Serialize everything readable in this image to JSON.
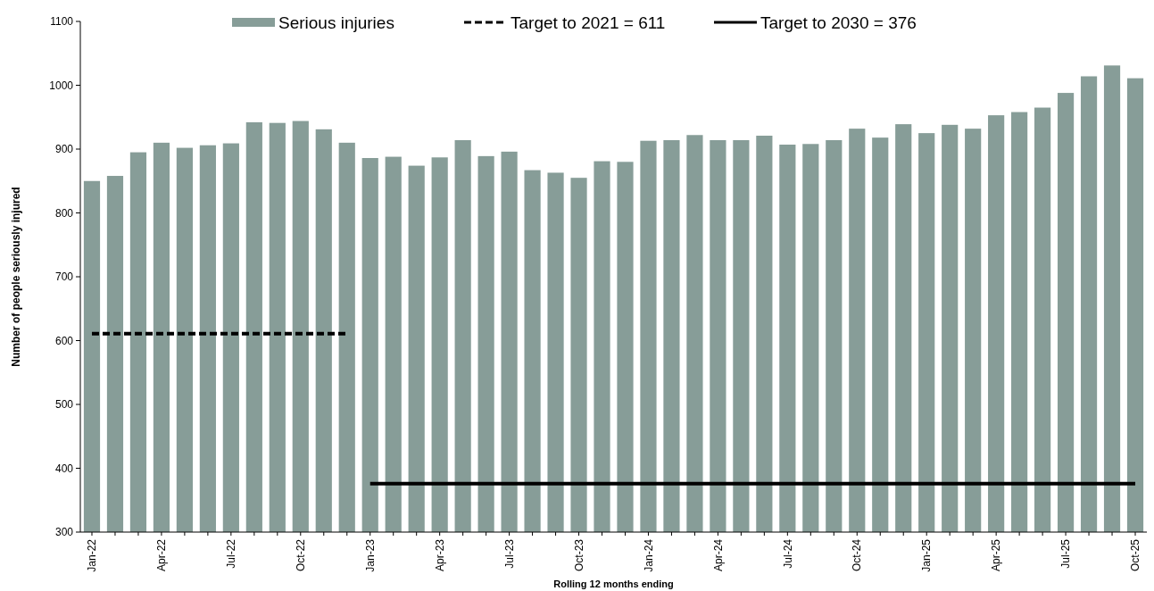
{
  "chart_data": {
    "type": "bar",
    "xlabel": "Rolling 12 months ending",
    "ylabel": "Number of people seriously injured",
    "categories": [
      "Jan-22",
      null,
      null,
      "Apr-22",
      null,
      null,
      "Jul-22",
      null,
      null,
      "Oct-22",
      null,
      null,
      "Jan-23",
      null,
      null,
      "Apr-23",
      null,
      null,
      "Jul-23",
      null,
      null,
      "Oct-23",
      null,
      null,
      "Jan-24",
      null,
      null,
      "Apr-24",
      null,
      null,
      "Jul-24",
      null,
      null,
      "Oct-24",
      null,
      null,
      "Jan-25",
      null,
      null,
      "Apr-25",
      null,
      null,
      "Jul-25",
      null,
      null,
      "Oct-25"
    ],
    "series": [
      {
        "name": "Serious injuries",
        "color": "#879d98",
        "values": [
          850,
          858,
          895,
          910,
          902,
          906,
          909,
          942,
          941,
          944,
          931,
          910,
          886,
          888,
          874,
          887,
          914,
          889,
          896,
          867,
          863,
          855,
          881,
          880,
          913,
          914,
          922,
          914,
          914,
          921,
          907,
          908,
          914,
          932,
          918,
          939,
          925,
          938,
          932,
          953,
          958,
          965,
          988,
          1014,
          1031,
          1011
        ]
      },
      {
        "name": "Target to 2021 = 611",
        "type": "line",
        "color": "#000000",
        "line_style": "dashed",
        "values": [
          611,
          611,
          611,
          611,
          611,
          611,
          611,
          611,
          611,
          611,
          611,
          611,
          null,
          null,
          null,
          null,
          null,
          null,
          null,
          null,
          null,
          null,
          null,
          null,
          null,
          null,
          null,
          null,
          null,
          null,
          null,
          null,
          null,
          null,
          null,
          null,
          null,
          null,
          null,
          null,
          null,
          null,
          null,
          null,
          null,
          null
        ]
      },
      {
        "name": "Target to 2030 = 376",
        "type": "line",
        "color": "#000000",
        "line_style": "solid",
        "values": [
          null,
          null,
          null,
          null,
          null,
          null,
          null,
          null,
          null,
          null,
          null,
          null,
          376,
          376,
          376,
          376,
          376,
          376,
          376,
          376,
          376,
          376,
          376,
          376,
          376,
          376,
          376,
          376,
          376,
          376,
          376,
          376,
          376,
          376,
          376,
          376,
          376,
          376,
          376,
          376,
          376,
          376,
          376,
          376,
          376,
          376
        ]
      }
    ],
    "ylim": [
      300,
      1100
    ],
    "yticks": [
      300,
      400,
      500,
      600,
      700,
      800,
      900,
      1000,
      1100
    ],
    "legend": "top"
  }
}
